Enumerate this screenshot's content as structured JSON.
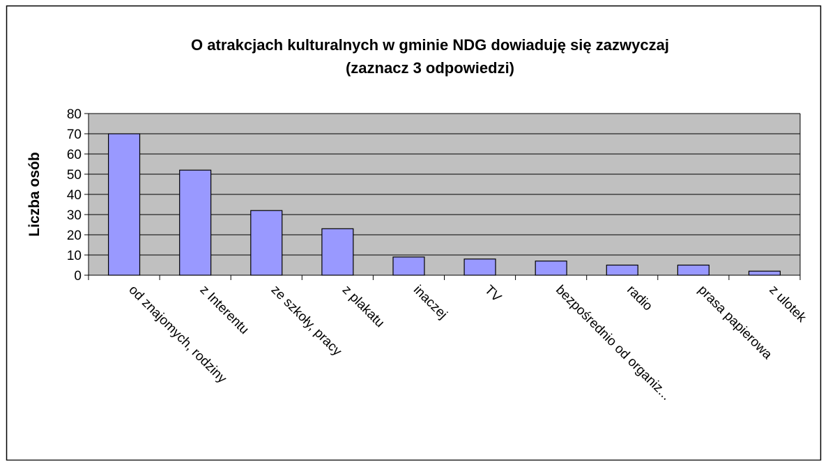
{
  "chart_data": {
    "type": "bar",
    "title": "O atrakcjach kulturalnych w gminie NDG dowiaduję się zazwyczaj",
    "subtitle": "(zaznacz 3 odpowiedzi)",
    "y_label": "Liczba osób",
    "categories": [
      "od znajomych, rodziny",
      "z Interentu",
      "ze szkoły, pracy",
      "z plakatu",
      "inaczej",
      "TV",
      "bezpośrednio od organiz...",
      "radio",
      "prasa papierowa",
      "z ulotek"
    ],
    "values": [
      70,
      52,
      32,
      23,
      9,
      8,
      7,
      5,
      5,
      2
    ],
    "color": "#9999ff",
    "ylim": [
      0,
      80
    ],
    "yticks": [
      0,
      10,
      20,
      30,
      40,
      50,
      60,
      70,
      80
    ],
    "grid": true
  }
}
